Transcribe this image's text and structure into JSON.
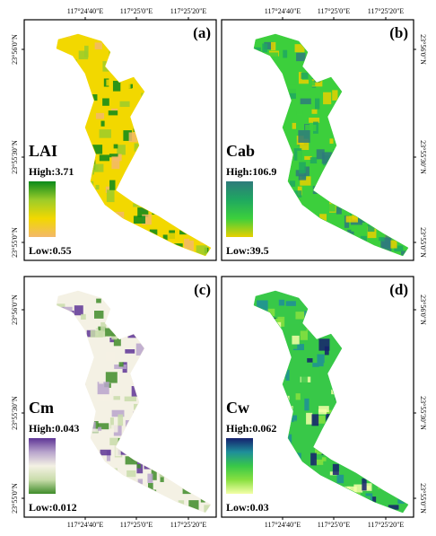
{
  "lon_ticks": [
    "117°24'40\"E",
    "117°25'0\"E",
    "117°25'20\"E"
  ],
  "lat_ticks": [
    "23°56'0\"N",
    "23°55'30\"N",
    "23°55'0\"N"
  ],
  "panels": [
    {
      "label": "(a)",
      "variable": "LAI",
      "high": "High:3.71",
      "low": "Low:0.55",
      "colors": [
        "#0a8a1a",
        "#9ccc2a",
        "#f2d800",
        "#f3b86a"
      ]
    },
    {
      "label": "(b)",
      "variable": "Cab",
      "high": "High:106.9",
      "low": "Low:39.5",
      "colors": [
        "#2e7b7b",
        "#1fa860",
        "#3ccf3c",
        "#e6d000"
      ]
    },
    {
      "label": "(c)",
      "variable": "Cm",
      "high": "High:0.043",
      "low": "Low:0.012",
      "colors": [
        "#5e3596",
        "#b8a4cc",
        "#f4f1e4",
        "#c8dcaa",
        "#3f8c2a"
      ]
    },
    {
      "label": "(d)",
      "variable": "Cw",
      "high": "High:0.062",
      "low": "Low:0.03",
      "colors": [
        "#15206e",
        "#1e8e9a",
        "#38c848",
        "#88e040",
        "#f4ffa8"
      ]
    }
  ]
}
